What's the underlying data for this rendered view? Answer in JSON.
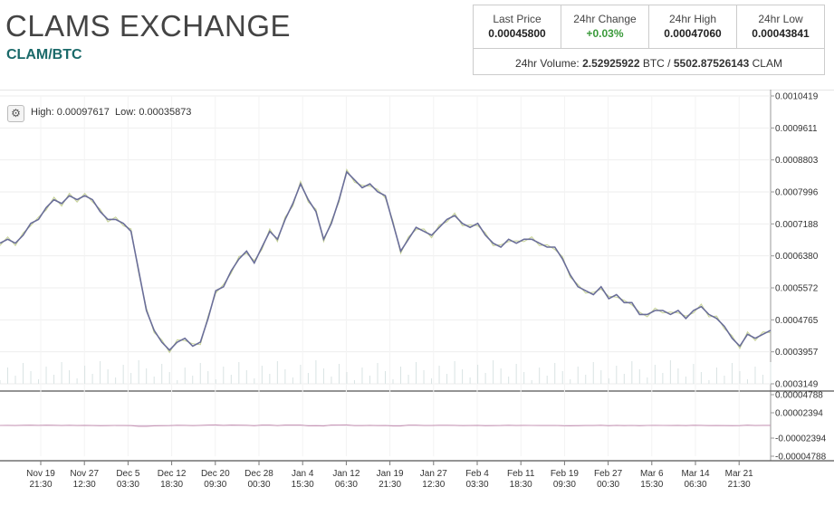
{
  "header": {
    "title": "CLAMS EXCHANGE",
    "pair": "CLAM/BTC"
  },
  "stats": {
    "last_price_label": "Last Price",
    "last_price": "0.00045800",
    "change_label": "24hr Change",
    "change": "+0.03%",
    "high_label": "24hr High",
    "high": "0.00047060",
    "low_label": "24hr Low",
    "low": "0.00043841",
    "volume_label": "24hr Volume:",
    "volume_btc": "2.52925922",
    "volume_btc_unit": "BTC /",
    "volume_clam": "5502.87526143",
    "volume_clam_unit": "CLAM"
  },
  "chart_header": {
    "settings_icon": "gear-icon",
    "high_label": "High:",
    "high": "0.00097617",
    "low_label": "Low:",
    "low": "0.00035873"
  },
  "colors": {
    "accent": "#1b6a6a",
    "positive": "#3a9a3a",
    "price_line": "#6a6e99",
    "macd_line": "#c89ab8"
  },
  "chart_data": {
    "type": "line",
    "price_axis_ticks": [
      "0.0010419",
      "0.0009611",
      "0.0008803",
      "0.0007996",
      "0.0007188",
      "0.0006380",
      "0.0005572",
      "0.0004765",
      "0.0003957",
      "0.0003149"
    ],
    "indicator_axis_ticks": [
      "0.00004788",
      "0.00002394",
      "-0.00002394",
      "-0.00004788"
    ],
    "x_ticks": [
      {
        "date": "Nov 19",
        "time": "21:30"
      },
      {
        "date": "Nov 27",
        "time": "12:30"
      },
      {
        "date": "Dec 5",
        "time": "03:30"
      },
      {
        "date": "Dec 12",
        "time": "18:30"
      },
      {
        "date": "Dec 20",
        "time": "09:30"
      },
      {
        "date": "Dec 28",
        "time": "00:30"
      },
      {
        "date": "Jan 4",
        "time": "15:30"
      },
      {
        "date": "Jan 12",
        "time": "06:30"
      },
      {
        "date": "Jan 19",
        "time": "21:30"
      },
      {
        "date": "Jan 27",
        "time": "12:30"
      },
      {
        "date": "Feb 4",
        "time": "03:30"
      },
      {
        "date": "Feb 11",
        "time": "18:30"
      },
      {
        "date": "Feb 19",
        "time": "09:30"
      },
      {
        "date": "Feb 27",
        "time": "00:30"
      },
      {
        "date": "Mar 6",
        "time": "15:30"
      },
      {
        "date": "Mar 14",
        "time": "06:30"
      },
      {
        "date": "Mar 21",
        "time": "21:30"
      }
    ],
    "ylim": [
      0.0003149,
      0.0010419
    ],
    "series": [
      {
        "values": [
          0.00067,
          0.00068,
          0.00067,
          0.00069,
          0.00072,
          0.00073,
          0.00076,
          0.00078,
          0.00077,
          0.00079,
          0.00078,
          0.00079,
          0.00078,
          0.00075,
          0.00073,
          0.00073,
          0.00072,
          0.0007,
          0.0006,
          0.0005,
          0.00045,
          0.00042,
          0.0004,
          0.00042,
          0.00043,
          0.00041,
          0.00042,
          0.00048,
          0.00055,
          0.00056,
          0.0006,
          0.00063,
          0.00065,
          0.00062,
          0.00066,
          0.0007,
          0.00068,
          0.00073,
          0.00077,
          0.00082,
          0.00078,
          0.00075,
          0.00068,
          0.00072,
          0.00078,
          0.00085,
          0.00083,
          0.00081,
          0.00082,
          0.0008,
          0.00079,
          0.00072,
          0.00065,
          0.00068,
          0.00071,
          0.0007,
          0.00069,
          0.00071,
          0.00073,
          0.00074,
          0.00072,
          0.00071,
          0.00072,
          0.00069,
          0.00067,
          0.00066,
          0.00068,
          0.00067,
          0.00068,
          0.00068,
          0.00067,
          0.00066,
          0.00066,
          0.00063,
          0.00059,
          0.00056,
          0.00055,
          0.00054,
          0.00056,
          0.00053,
          0.00054,
          0.00052,
          0.00052,
          0.00049,
          0.00049,
          0.0005,
          0.0005,
          0.00049,
          0.0005,
          0.00048,
          0.0005,
          0.00051,
          0.00049,
          0.00048,
          0.00046,
          0.00043,
          0.00041,
          0.00044,
          0.00043,
          0.00044,
          0.00045
        ]
      }
    ]
  }
}
